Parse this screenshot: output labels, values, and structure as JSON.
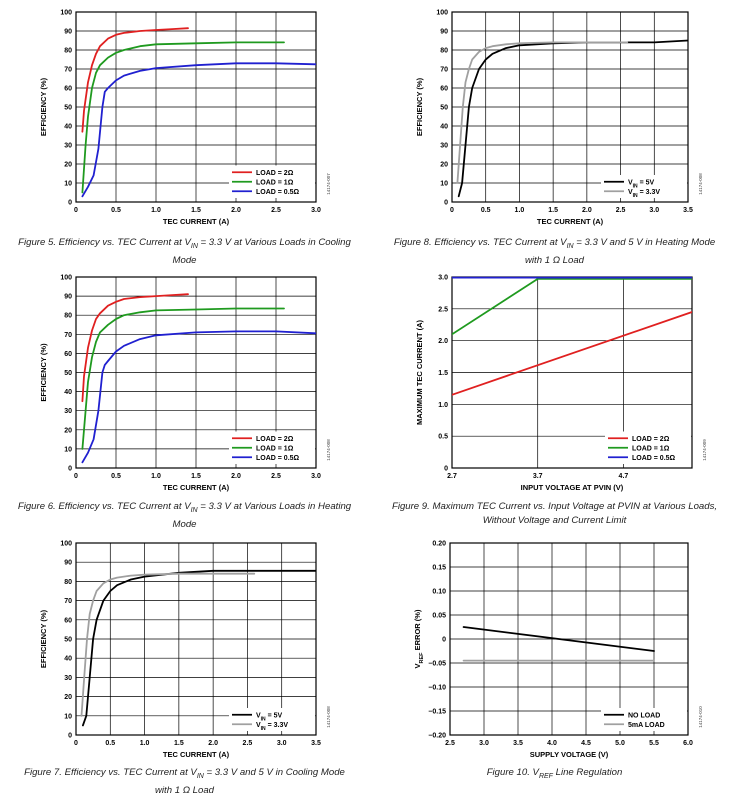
{
  "figures": [
    {
      "id": "fig5",
      "caption_lines": [
        "Figure 5. Efficiency vs. TEC Current at VIN = 3.3 V at Various Loads in Cooling",
        "Mode"
      ],
      "side_code": "14174-007",
      "chart_data": {
        "type": "line",
        "xlabel": "TEC CURRENT (A)",
        "ylabel": "EFFICIENCY (%)",
        "xlim": [
          0,
          3.0
        ],
        "ylim": [
          0,
          100
        ],
        "xticks": [
          0,
          0.5,
          1.0,
          1.5,
          2.0,
          2.5,
          3.0
        ],
        "xtick_labels": [
          "0",
          "0.5",
          "1.0",
          "1.5",
          "2.0",
          "2.5",
          "3.0"
        ],
        "yticks": [
          0,
          10,
          20,
          30,
          40,
          50,
          60,
          70,
          80,
          90,
          100
        ],
        "ytick_labels": [
          "0",
          "10",
          "20",
          "30",
          "40",
          "50",
          "60",
          "70",
          "80",
          "90",
          "100"
        ],
        "grid": true,
        "legend": "bottom-right",
        "series": [
          {
            "name": "LOAD = 2Ω",
            "color": "#e02020",
            "x": [
              0.08,
              0.1,
              0.15,
              0.2,
              0.25,
              0.3,
              0.4,
              0.5,
              0.6,
              0.8,
              1.0,
              1.2,
              1.4
            ],
            "y": [
              37,
              48,
              63,
              72,
              78,
              82,
              86,
              88,
              89,
              90,
              90.5,
              91,
              91.5
            ]
          },
          {
            "name": "LOAD = 1Ω",
            "color": "#1f9a1f",
            "x": [
              0.08,
              0.12,
              0.15,
              0.2,
              0.25,
              0.3,
              0.4,
              0.5,
              0.6,
              0.8,
              1.0,
              1.5,
              2.0,
              2.6
            ],
            "y": [
              5,
              30,
              45,
              60,
              68,
              72,
              76,
              78.5,
              80,
              82,
              83,
              83.5,
              84,
              84
            ]
          },
          {
            "name": "LOAD = 0.5Ω",
            "color": "#2020d0",
            "x": [
              0.08,
              0.15,
              0.22,
              0.28,
              0.33,
              0.36,
              0.4,
              0.5,
              0.6,
              0.8,
              1.0,
              1.5,
              2.0,
              2.5,
              3.0
            ],
            "y": [
              3,
              8,
              14,
              28,
              50,
              58,
              60,
              64,
              66.5,
              69,
              70.5,
              72,
              73,
              73,
              72.5
            ]
          }
        ]
      }
    },
    {
      "id": "fig8",
      "caption_lines": [
        "Figure 8. Efficiency vs. TEC Current at VIN = 3.3 V and 5 V in Heating Mode",
        "with 1 Ω Load"
      ],
      "side_code": "14174-008",
      "chart_data": {
        "type": "line",
        "xlabel": "TEC CURRENT (A)",
        "ylabel": "EFFICIENCY (%)",
        "xlim": [
          0,
          3.5
        ],
        "ylim": [
          0,
          100
        ],
        "xticks": [
          0,
          0.5,
          1.0,
          1.5,
          2.0,
          2.5,
          3.0,
          3.5
        ],
        "xtick_labels": [
          "0",
          "0.5",
          "1.0",
          "1.5",
          "2.0",
          "2.5",
          "3.0",
          "3.5"
        ],
        "yticks": [
          0,
          10,
          20,
          30,
          40,
          50,
          60,
          70,
          80,
          90,
          100
        ],
        "ytick_labels": [
          "0",
          "10",
          "20",
          "30",
          "40",
          "50",
          "60",
          "70",
          "80",
          "90",
          "100"
        ],
        "grid": true,
        "legend": "bottom-right",
        "series": [
          {
            "name": "VIN = 5V",
            "color": "#000000",
            "x": [
              0.1,
              0.15,
              0.2,
              0.25,
              0.3,
              0.4,
              0.5,
              0.6,
              0.8,
              1.0,
              1.5,
              2.0,
              2.5,
              3.0,
              3.5
            ],
            "y": [
              3,
              10,
              30,
              50,
              60,
              70,
              75,
              78,
              81,
              82.5,
              83.5,
              84,
              84,
              84,
              85
            ]
          },
          {
            "name": "VIN = 3.3V",
            "color": "#a0a0a0",
            "x": [
              0.08,
              0.12,
              0.16,
              0.2,
              0.25,
              0.3,
              0.4,
              0.5,
              0.6,
              0.8,
              1.0,
              1.5,
              2.0,
              2.6
            ],
            "y": [
              10,
              30,
              50,
              63,
              70,
              75,
              79,
              81,
              82,
              83,
              83.5,
              84,
              84,
              84
            ]
          }
        ]
      }
    },
    {
      "id": "fig6",
      "caption_lines": [
        "Figure 6. Efficiency vs. TEC Current at VIN = 3.3 V at Various Loads in Heating",
        "Mode"
      ],
      "side_code": "14174-008",
      "chart_data": {
        "type": "line",
        "xlabel": "TEC CURRENT (A)",
        "ylabel": "EFFICIENCY (%)",
        "xlim": [
          0,
          3.0
        ],
        "ylim": [
          0,
          100
        ],
        "xticks": [
          0,
          0.5,
          1.0,
          1.5,
          2.0,
          2.5,
          3.0
        ],
        "xtick_labels": [
          "0",
          "0.5",
          "1.0",
          "1.5",
          "2.0",
          "2.5",
          "3.0"
        ],
        "yticks": [
          0,
          10,
          20,
          30,
          40,
          50,
          60,
          70,
          80,
          90,
          100
        ],
        "ytick_labels": [
          "0",
          "10",
          "20",
          "30",
          "40",
          "50",
          "60",
          "70",
          "80",
          "90",
          "100"
        ],
        "grid": true,
        "legend": "bottom-right",
        "series": [
          {
            "name": "LOAD = 2Ω",
            "color": "#e02020",
            "x": [
              0.08,
              0.1,
              0.15,
              0.2,
              0.25,
              0.3,
              0.4,
              0.5,
              0.6,
              0.8,
              1.0,
              1.2,
              1.4
            ],
            "y": [
              35,
              48,
              63,
              72,
              78,
              81,
              85,
              87,
              88.5,
              89.5,
              90,
              90.5,
              91
            ]
          },
          {
            "name": "LOAD = 1Ω",
            "color": "#1f9a1f",
            "x": [
              0.08,
              0.12,
              0.15,
              0.2,
              0.25,
              0.3,
              0.4,
              0.5,
              0.6,
              0.8,
              1.0,
              1.5,
              2.0,
              2.6
            ],
            "y": [
              10,
              30,
              45,
              58,
              66,
              71,
              75,
              78,
              80,
              81.5,
              82.5,
              83,
              83.5,
              83.5
            ]
          },
          {
            "name": "LOAD = 0.5Ω",
            "color": "#2020d0",
            "x": [
              0.08,
              0.15,
              0.22,
              0.28,
              0.33,
              0.36,
              0.4,
              0.5,
              0.6,
              0.8,
              1.0,
              1.5,
              2.0,
              2.5,
              3.0
            ],
            "y": [
              3,
              8,
              15,
              30,
              50,
              54,
              56,
              61,
              64,
              67.5,
              69.5,
              71,
              71.5,
              71.5,
              70.5
            ]
          }
        ]
      }
    },
    {
      "id": "fig9",
      "caption_lines": [
        "Figure 9. Maximum TEC Current vs. Input Voltage at PVIN at Various Loads,",
        "Without Voltage and Current Limit"
      ],
      "side_code": "14174-009",
      "chart_data": {
        "type": "line",
        "xlabel": "INPUT VOLTAGE AT PVIN (V)",
        "ylabel": "MAXIMUM TEC CURRENT (A)",
        "xlim": [
          2.7,
          5.5
        ],
        "ylim": [
          0,
          3.0
        ],
        "xticks": [
          2.7,
          3.7,
          4.7
        ],
        "xtick_labels": [
          "2.7",
          "3.7",
          "4.7"
        ],
        "yticks": [
          0,
          0.5,
          1.0,
          1.5,
          2.0,
          2.5,
          3.0
        ],
        "ytick_labels": [
          "0",
          "0.5",
          "1.0",
          "1.5",
          "2.0",
          "2.5",
          "3.0"
        ],
        "grid": true,
        "legend": "bottom-right",
        "series": [
          {
            "name": "LOAD = 2Ω",
            "color": "#e02020",
            "x": [
              2.7,
              5.5
            ],
            "y": [
              1.15,
              2.45
            ]
          },
          {
            "name": "LOAD = 1Ω",
            "color": "#1f9a1f",
            "x": [
              2.7,
              3.7,
              5.5
            ],
            "y": [
              2.1,
              2.97,
              2.97
            ]
          },
          {
            "name": "LOAD = 0.5Ω",
            "color": "#2020d0",
            "x": [
              2.7,
              5.5
            ],
            "y": [
              2.99,
              2.99
            ]
          }
        ]
      }
    },
    {
      "id": "fig7",
      "caption_lines": [
        "Figure 7. Efficiency vs. TEC Current at VIN = 3.3 V and 5 V in Cooling Mode",
        "with 1 Ω Load"
      ],
      "side_code": "14174-008",
      "chart_data": {
        "type": "line",
        "xlabel": "TEC CURRENT (A)",
        "ylabel": "EFFICIENCY (%)",
        "xlim": [
          0,
          3.5
        ],
        "ylim": [
          0,
          100
        ],
        "xticks": [
          0,
          0.5,
          1.0,
          1.5,
          2.0,
          2.5,
          3.0,
          3.5
        ],
        "xtick_labels": [
          "0",
          "0.5",
          "1.0",
          "1.5",
          "2.0",
          "2.5",
          "3.0",
          "3.5"
        ],
        "yticks": [
          0,
          10,
          20,
          30,
          40,
          50,
          60,
          70,
          80,
          90,
          100
        ],
        "ytick_labels": [
          "0",
          "10",
          "20",
          "30",
          "40",
          "50",
          "60",
          "70",
          "80",
          "90",
          "100"
        ],
        "grid": true,
        "legend": "bottom-right",
        "series": [
          {
            "name": "VIN = 5V",
            "color": "#000000",
            "x": [
              0.1,
              0.15,
              0.2,
              0.25,
              0.3,
              0.4,
              0.5,
              0.6,
              0.8,
              1.0,
              1.5,
              2.0,
              2.5,
              3.0,
              3.5
            ],
            "y": [
              5,
              10,
              30,
              50,
              60,
              70,
              75,
              78,
              81,
              82.5,
              84.5,
              85.5,
              85.5,
              85.5,
              85.5
            ]
          },
          {
            "name": "VIN = 3.3V",
            "color": "#a0a0a0",
            "x": [
              0.08,
              0.12,
              0.16,
              0.2,
              0.25,
              0.3,
              0.4,
              0.5,
              0.6,
              0.8,
              1.0,
              1.5,
              2.0,
              2.6
            ],
            "y": [
              10,
              30,
              50,
              63,
              70,
              75,
              79,
              81,
              82,
              83,
              83.5,
              84,
              84,
              84
            ]
          }
        ]
      }
    },
    {
      "id": "fig10",
      "caption_lines": [
        "Figure 10. VREF Line Regulation"
      ],
      "side_code": "14174-010",
      "chart_data": {
        "type": "line",
        "xlabel": "SUPPLY VOLTAGE (V)",
        "ylabel": "VREF ERROR (%)",
        "xlim": [
          2.5,
          6.0
        ],
        "ylim": [
          -0.2,
          0.2
        ],
        "xticks": [
          2.5,
          3.0,
          3.5,
          4.0,
          4.5,
          5.0,
          5.5,
          6.0
        ],
        "xtick_labels": [
          "2.5",
          "3.0",
          "3.5",
          "4.0",
          "4.5",
          "5.0",
          "5.5",
          "6.0"
        ],
        "yticks": [
          -0.2,
          -0.15,
          -0.1,
          -0.05,
          0,
          0.05,
          0.1,
          0.15,
          0.2
        ],
        "ytick_labels": [
          "−0.20",
          "−0.15",
          "−0.10",
          "−0.05",
          "0",
          "0.05",
          "0.10",
          "0.15",
          "0.20"
        ],
        "grid": true,
        "legend": "bottom-right",
        "series": [
          {
            "name": "NO LOAD",
            "color": "#000000",
            "x": [
              2.7,
              5.5
            ],
            "y": [
              0.025,
              -0.025
            ]
          },
          {
            "name": "5mA LOAD",
            "color": "#a0a0a0",
            "x": [
              2.7,
              5.5
            ],
            "y": [
              -0.045,
              -0.045
            ]
          }
        ]
      }
    }
  ]
}
